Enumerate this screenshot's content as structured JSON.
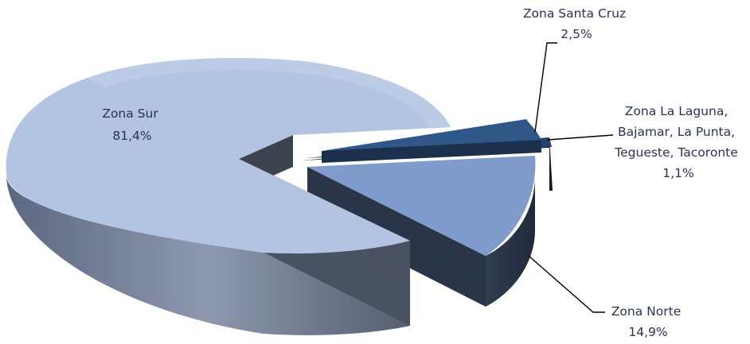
{
  "chart_data": {
    "type": "pie",
    "title": "",
    "three_d": true,
    "exploded": true,
    "slices": [
      {
        "name": "Zona Sur",
        "label_lines": [
          "Zona Sur",
          "81,4%"
        ],
        "value": 81.4,
        "color": "#b3c3e2"
      },
      {
        "name": "Zona Santa Cruz",
        "label_lines": [
          "Zona Santa Cruz",
          "2,5%"
        ],
        "value": 2.5,
        "color": "#2f5788"
      },
      {
        "name": "Zona La Laguna, Bajamar, La Punta, Tegueste, Tacoronte",
        "label_lines": [
          "Zona La Laguna,",
          "Bajamar, La Punta,",
          "Tegueste, Tacoronte",
          "1,1%"
        ],
        "value": 1.1,
        "color": "#21416c"
      },
      {
        "name": "Zona Norte",
        "label_lines": [
          "Zona Norte",
          "14,9%"
        ],
        "value": 14.9,
        "color": "#7f9ccc"
      }
    ]
  }
}
